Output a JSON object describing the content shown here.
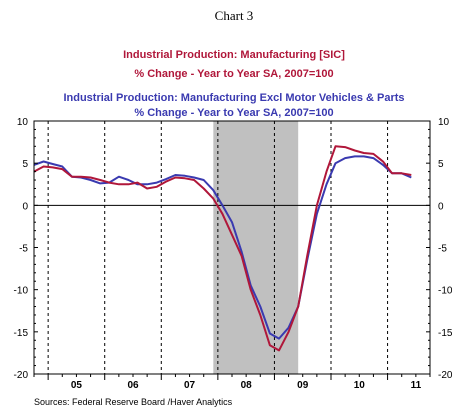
{
  "page": {
    "chart_number": "Chart 3",
    "source": "Sources:  Federal Reserve Board /Haver Analytics"
  },
  "colors": {
    "series_manufacturing": "#b0173a",
    "series_excl_motor": "#3a3ab0",
    "recession_shade": "#c0c0c0",
    "axis": "#000000",
    "grid": "#000000"
  },
  "chart_data": {
    "type": "line",
    "title_lines": [
      {
        "text": "Industrial Production: Manufacturing [SIC]",
        "color": "#b0173a"
      },
      {
        "text": "% Change - Year to Year    SA, 2007=100",
        "color": "#b0173a"
      },
      {
        "text": "Industrial Production: Manufacturing Excl Motor Vehicles & Parts",
        "color": "#3a3ab0"
      },
      {
        "text": "% Change - Year to Year    SA, 2007=100",
        "color": "#3a3ab0"
      }
    ],
    "x_labels": [
      "05",
      "06",
      "07",
      "08",
      "09",
      "10",
      "11"
    ],
    "x_range": [
      2004.75,
      2011.75
    ],
    "ylim": [
      -20,
      10
    ],
    "y_ticks": [
      10,
      5,
      0,
      -5,
      -10,
      -15,
      -20
    ],
    "recession": [
      2007.92,
      2009.42
    ],
    "grid": "dashed vertical year lines and solid zero line",
    "series": [
      {
        "name": "Industrial Production: Manufacturing [SIC]",
        "x": [
          2004.75,
          2004.92,
          2005.08,
          2005.25,
          2005.42,
          2005.58,
          2005.75,
          2005.92,
          2006.08,
          2006.25,
          2006.42,
          2006.58,
          2006.75,
          2006.92,
          2007.08,
          2007.25,
          2007.42,
          2007.58,
          2007.75,
          2007.92,
          2008.08,
          2008.25,
          2008.42,
          2008.58,
          2008.75,
          2008.92,
          2009.08,
          2009.25,
          2009.42,
          2009.58,
          2009.75,
          2009.92,
          2010.08,
          2010.25,
          2010.42,
          2010.58,
          2010.75,
          2010.92,
          2011.08,
          2011.25,
          2011.42
        ],
        "values": [
          4.0,
          4.6,
          4.5,
          4.3,
          3.4,
          3.4,
          3.3,
          3.0,
          2.7,
          2.5,
          2.5,
          2.7,
          2.0,
          2.2,
          2.8,
          3.3,
          3.2,
          3.0,
          2.0,
          0.8,
          -1.0,
          -3.5,
          -6.0,
          -10.0,
          -13.0,
          -16.6,
          -17.2,
          -15.0,
          -12.0,
          -6.0,
          0.0,
          4.0,
          7.0,
          6.9,
          6.5,
          6.2,
          6.1,
          5.2,
          3.8,
          3.8,
          3.6
        ]
      },
      {
        "name": "Industrial Production: Manufacturing Excl Motor Vehicles & Parts",
        "x": [
          2004.75,
          2004.92,
          2005.08,
          2005.25,
          2005.42,
          2005.58,
          2005.75,
          2005.92,
          2006.08,
          2006.25,
          2006.42,
          2006.58,
          2006.75,
          2006.92,
          2007.08,
          2007.25,
          2007.42,
          2007.58,
          2007.75,
          2007.92,
          2008.08,
          2008.25,
          2008.42,
          2008.58,
          2008.75,
          2008.92,
          2009.08,
          2009.25,
          2009.42,
          2009.58,
          2009.75,
          2009.92,
          2010.08,
          2010.25,
          2010.42,
          2010.58,
          2010.75,
          2010.92,
          2011.08,
          2011.25,
          2011.42
        ],
        "values": [
          4.8,
          5.2,
          4.9,
          4.6,
          3.4,
          3.3,
          3.0,
          2.6,
          2.7,
          3.4,
          3.0,
          2.5,
          2.5,
          2.7,
          3.1,
          3.6,
          3.5,
          3.3,
          3.0,
          1.8,
          0.0,
          -2.0,
          -5.5,
          -9.5,
          -12.0,
          -15.2,
          -15.8,
          -14.5,
          -12.0,
          -6.5,
          -1.0,
          2.5,
          5.0,
          5.6,
          5.8,
          5.8,
          5.6,
          4.8,
          3.8,
          3.8,
          3.3
        ]
      }
    ]
  }
}
